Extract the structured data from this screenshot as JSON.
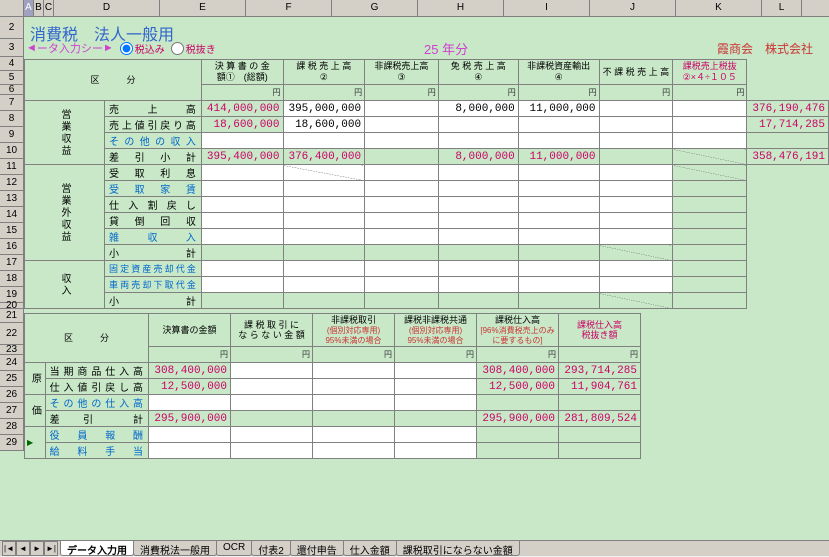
{
  "cols": [
    {
      "l": "",
      "w": 24
    },
    {
      "l": "A",
      "w": 10,
      "sel": true
    },
    {
      "l": "B",
      "w": 10
    },
    {
      "l": "C",
      "w": 10
    },
    {
      "l": "D",
      "w": 106
    },
    {
      "l": "E",
      "w": 86
    },
    {
      "l": "F",
      "w": 86
    },
    {
      "l": "G",
      "w": 86
    },
    {
      "l": "H",
      "w": 86
    },
    {
      "l": "I",
      "w": 86
    },
    {
      "l": "J",
      "w": 86
    },
    {
      "l": "K",
      "w": 86
    },
    {
      "l": "L",
      "w": 40
    }
  ],
  "rows": [
    {
      "n": "2",
      "h": 22
    },
    {
      "n": "3",
      "h": 18
    },
    {
      "n": "4",
      "h": 14
    },
    {
      "n": "5",
      "h": 14
    },
    {
      "n": "6",
      "h": 10
    },
    {
      "n": "7",
      "h": 16
    },
    {
      "n": "8",
      "h": 16
    },
    {
      "n": "9",
      "h": 16
    },
    {
      "n": "10",
      "h": 16
    },
    {
      "n": "11",
      "h": 16
    },
    {
      "n": "12",
      "h": 16
    },
    {
      "n": "13",
      "h": 16
    },
    {
      "n": "14",
      "h": 16
    },
    {
      "n": "15",
      "h": 16
    },
    {
      "n": "16",
      "h": 16
    },
    {
      "n": "17",
      "h": 16
    },
    {
      "n": "18",
      "h": 16
    },
    {
      "n": "19",
      "h": 16
    },
    {
      "n": "20",
      "h": 6
    },
    {
      "n": "21",
      "h": 14
    },
    {
      "n": "22",
      "h": 22
    },
    {
      "n": "23",
      "h": 10
    },
    {
      "n": "24",
      "h": 16
    },
    {
      "n": "25",
      "h": 16
    },
    {
      "n": "26",
      "h": 16
    },
    {
      "n": "27",
      "h": 16
    },
    {
      "n": "28",
      "h": 16
    },
    {
      "n": "29",
      "h": 16
    }
  ],
  "title": "消費税　法人一般用",
  "subtitle": "ータ入力シー",
  "radio1": "税込み",
  "radio2": "税抜き",
  "year": "25 年分",
  "company": "霞商会　株式会社",
  "h": {
    "kubun": "区　　　分",
    "c1a": "決 算 書 の 金",
    "c1b": "額①　(総額)",
    "c2": "課 税 売 上 高",
    "c2s": "②",
    "c3": "非課税売上高",
    "c3s": "③",
    "c4": "免 税 売 上 高",
    "c4s": "④",
    "c5": "非課税資産輸出",
    "c5s": "④",
    "c6": "不 課 税 売 上 高",
    "c7": "課税売上税抜",
    "c7s": "②×４÷１０５"
  },
  "vcat1": "営業収益",
  "vcat2": "営業外収益",
  "vcat3": "収入",
  "r": {
    "r7": {
      "lbl": "売　　上　　高",
      "v": [
        "414,000,000",
        "395,000,000",
        "",
        "8,000,000",
        "11,000,000",
        "",
        "",
        "376,190,476"
      ]
    },
    "r8": {
      "lbl": "売上値引戻り高",
      "v": [
        "18,600,000",
        "18,600,000",
        "",
        "",
        "",
        "",
        "",
        "17,714,285"
      ]
    },
    "r9": {
      "lbl": "その他の収入",
      "v": [
        "",
        "",
        "",
        "",
        "",
        "",
        "",
        ""
      ]
    },
    "r10": {
      "lbl": "差　引　小　計",
      "v": [
        "395,400,000",
        "376,400,000",
        "",
        "8,000,000",
        "11,000,000",
        "",
        "",
        "358,476,191"
      ]
    },
    "r11": {
      "lbl": "受　取　利　息"
    },
    "r12": {
      "lbl": "受　取　家　賃"
    },
    "r13": {
      "lbl": "仕 入 割 戻 し"
    },
    "r14": {
      "lbl": "貸　倒　回　収"
    },
    "r15": {
      "lbl": "雑　　収　　入"
    },
    "r16": {
      "lbl": "小　　　　　計"
    },
    "r17": {
      "lbl": "固定資産売却代金"
    },
    "r18": {
      "lbl": "車両売却下取代金"
    },
    "r19": {
      "lbl": "小　　　　　計"
    }
  },
  "h2": {
    "kubun": "区　　　分",
    "c1": "決算書の金額",
    "c2": "課 税 取 引 に",
    "c2b": "な ら な い 金 額",
    "c3": "非課税取引",
    "c3b": "(個別対応専用)",
    "c3c": "95%未満の場合",
    "c4": "課税非課税共通",
    "c4b": "(個別対応専用)",
    "c4c": "95%未満の場合",
    "c5": "課税仕入高",
    "c5b": "[96%消費税売上のみに要するもの]",
    "c6": "課税仕入高",
    "c6b": "税抜き額"
  },
  "vcat4": "原",
  "vcat5": "価",
  "r2": {
    "r24": {
      "lbl": "当期商品仕入高",
      "v": [
        "308,400,000",
        "",
        "",
        "",
        "308,400,000",
        "293,714,285"
      ]
    },
    "r25": {
      "lbl": "仕入値引戻し高",
      "v": [
        "12,500,000",
        "",
        "",
        "",
        "12,500,000",
        "11,904,761"
      ]
    },
    "r26": {
      "lbl": "その他の仕入高",
      "v": [
        "",
        "",
        "",
        "",
        "",
        ""
      ]
    },
    "r27": {
      "lbl": "差　引　　計",
      "v": [
        "295,900,000",
        "",
        "",
        "",
        "295,900,000",
        "281,809,524"
      ]
    },
    "r28": {
      "lbl": "役　員　報　酬"
    },
    "r29": {
      "lbl": "給　料　手　当"
    }
  },
  "yen": "円",
  "tabs": [
    "データ入力用",
    "消費税法一般用",
    "OCR",
    "付表2",
    "還付申告",
    "仕入金額",
    "課税取引にならない金額"
  ]
}
